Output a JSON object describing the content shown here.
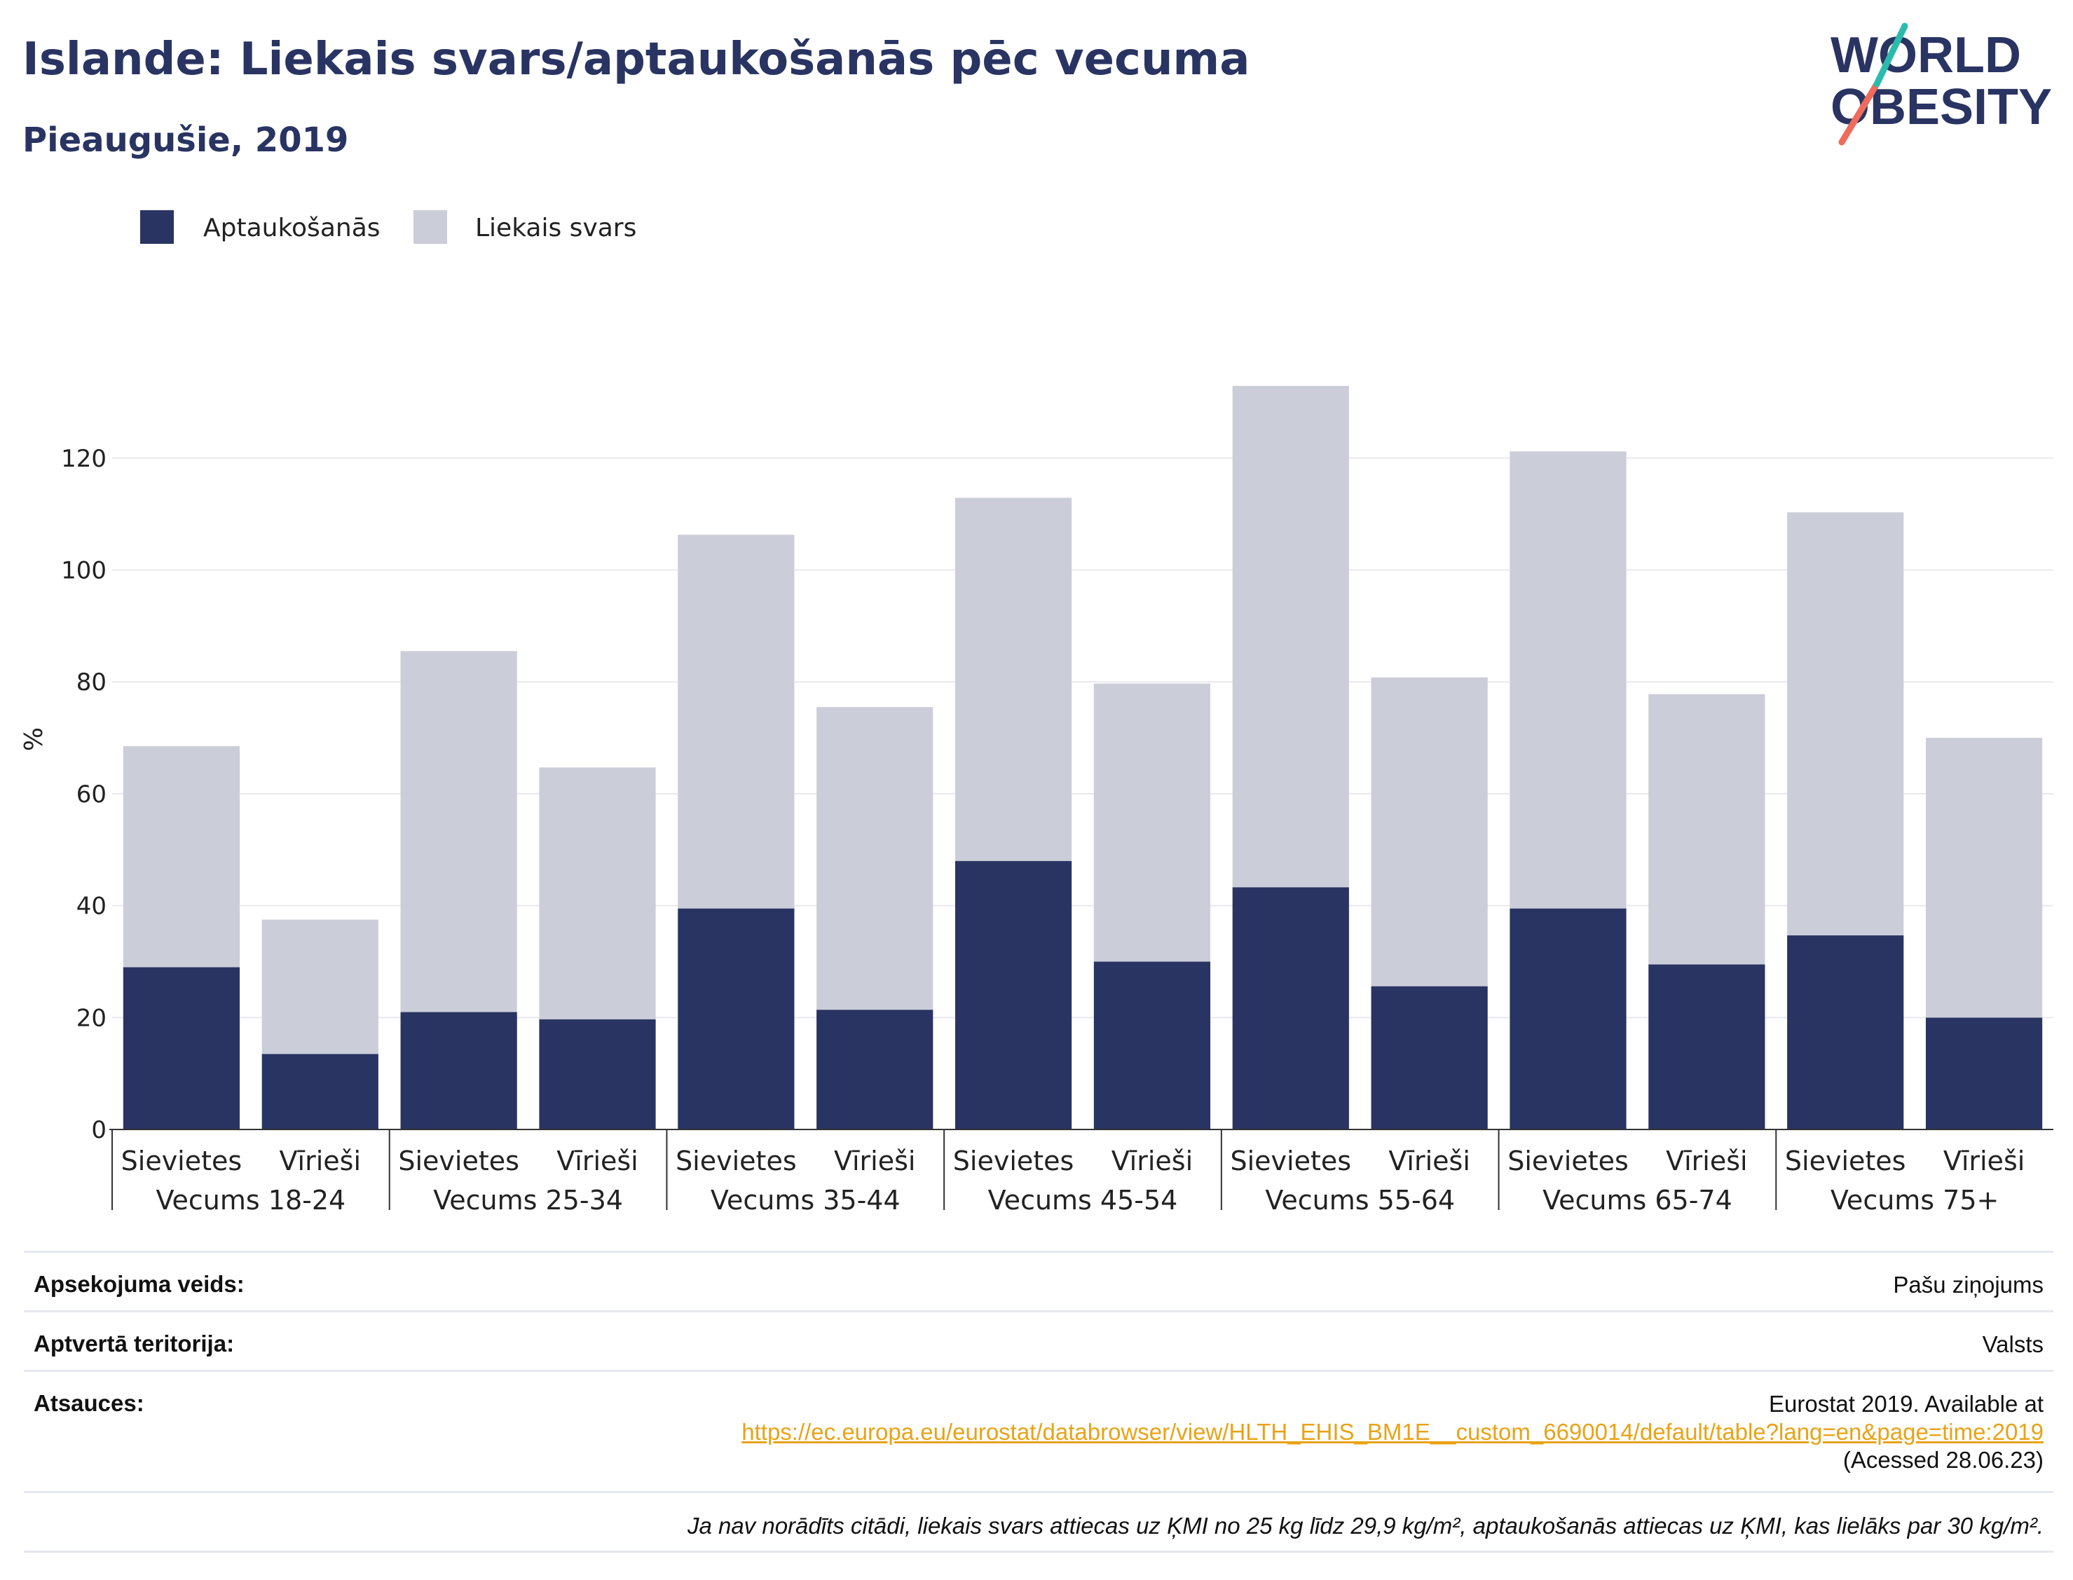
{
  "header": {
    "title": "Islande: Liekais svars/aptaukošanās pēc vecuma",
    "subtitle": "Pieaugušie, 2019"
  },
  "logo": {
    "line1": "WORLD",
    "line2": "OBESITY"
  },
  "colors": {
    "obesity": "#293462",
    "overweight": "#cbcdd9",
    "title": "#293462",
    "grid": "#e8e9ef",
    "link": "#e8a317",
    "logo_teal": "#2bbbad",
    "logo_red": "#ef6b5b"
  },
  "chart_data": {
    "type": "bar",
    "stacked": true,
    "ylabel": "%",
    "ylim": [
      0,
      133
    ],
    "yticks": [
      0,
      20,
      40,
      60,
      80,
      100,
      120
    ],
    "grid": true,
    "legend_position": "top-left",
    "groups": [
      "Vecums 18-24",
      "Vecums 25-34",
      "Vecums 35-44",
      "Vecums 45-54",
      "Vecums 55-64",
      "Vecums 65-74",
      "Vecums 75+"
    ],
    "subcategories": [
      "Sievietes",
      "Vīrieši"
    ],
    "series": [
      {
        "name": "Aptaukošanās",
        "values": [
          29.0,
          13.5,
          21.0,
          19.7,
          39.5,
          21.4,
          48.0,
          30.0,
          43.3,
          25.6,
          39.5,
          29.5,
          34.7,
          20.0
        ]
      },
      {
        "name": "Liekais svars",
        "values": [
          39.5,
          24.0,
          64.5,
          45.0,
          66.8,
          54.1,
          64.9,
          49.7,
          89.6,
          55.2,
          81.7,
          48.3,
          75.6,
          50.0
        ]
      }
    ]
  },
  "meta": {
    "survey_label": "Apsekojuma veids:",
    "survey_value": "Pašu ziņojums",
    "territory_label": "Aptvertā teritorija:",
    "territory_value": "Valsts",
    "refs_label": "Atsauces:",
    "refs_line1": "Eurostat 2019. Available at",
    "refs_link": "https://ec.europa.eu/eurostat/databrowser/view/HLTH_EHIS_BM1E__custom_6690014/default/table?lang=en&page=time:2019",
    "refs_line3": "(Acessed 28.06.23)",
    "note": "Ja nav norādīts citādi, liekais svars attiecas uz ĶMI no 25 kg līdz 29,9 kg/m², aptaukošanās attiecas uz ĶMI, kas lielāks par 30 kg/m²."
  }
}
